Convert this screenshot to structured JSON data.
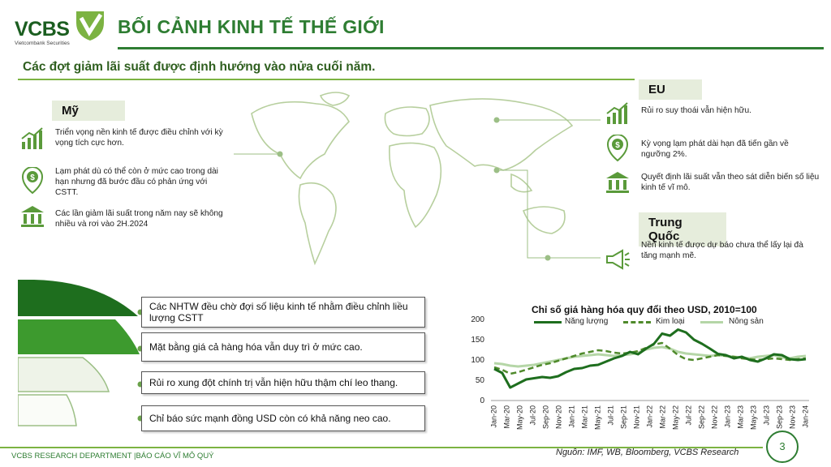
{
  "logo": {
    "text": "VCBS",
    "tagline": "Vietcombank Securities"
  },
  "title": "BỐI CẢNH KINH TẾ THẾ GIỚI",
  "subtitle": "Các đợt giảm lãi suất được định hướng vào nửa cuối năm.",
  "us": {
    "label": "Mỹ",
    "items": [
      {
        "icon": "growth-chart-icon",
        "text": "Triển vọng nền kinh tế được điều chỉnh với kỳ vọng tích cực hơn."
      },
      {
        "icon": "dollar-shield-icon",
        "text": "Lạm phát dù có thể còn ở mức cao trong dài hạn nhưng đã bước đầu có phản ứng với CSTT."
      },
      {
        "icon": "bank-icon",
        "text": "Các lần giảm lãi suất trong năm nay sẽ không nhiều và rơi vào 2H.2024"
      }
    ]
  },
  "eu": {
    "label": "EU",
    "items": [
      {
        "icon": "growth-chart-icon",
        "text": "Rủi ro suy thoái vẫn hiện hữu."
      },
      {
        "icon": "dollar-shield-icon",
        "text": "Kỳ vọng lạm phát dài hạn đã tiến gần về ngưỡng 2%."
      },
      {
        "icon": "bank-icon",
        "text": "Quyết định lãi suất vẫn theo sát diễn biến số liệu kinh tế vĩ mô."
      }
    ]
  },
  "china": {
    "label": "Trung Quốc",
    "items": [
      {
        "icon": "megaphone-icon",
        "text": "Nền kinh tế được dự báo chưa thể lấy lại đà tăng mạnh mẽ."
      }
    ]
  },
  "funnel": [
    "Các NHTW đều chờ đợi số liệu kinh tế nhằm điều chỉnh liều lượng CSTT",
    "Mặt bằng giá cả hàng hóa vẫn duy trì ở mức cao.",
    "Rủi ro xung đột chính trị vẫn hiện hữu thậm chí leo thang.",
    "Chỉ báo sức mạnh đồng USD còn có khả năng neo cao."
  ],
  "colors": {
    "brand": "#2e7d32",
    "energy": "#1e6e1e",
    "metal": "#4f8a2b",
    "agri": "#b5d6a7"
  },
  "chart_data": {
    "type": "line",
    "title": "Chỉ số giá hàng hóa quy đổi theo USD, 2010=100",
    "ylim": [
      0,
      200
    ],
    "yticks": [
      0,
      50,
      100,
      150,
      200
    ],
    "tick_labels": [
      "Jan-20",
      "Mar-20",
      "May-20",
      "Jul-20",
      "Sep-20",
      "Nov-20",
      "Jan-21",
      "Mar-21",
      "May-21",
      "Jul-21",
      "Sep-21",
      "Nov-21",
      "Jan-22",
      "Mar-22",
      "May-22",
      "Jul-22",
      "Sep-22",
      "Nov-22",
      "Jan-23",
      "Mar-23",
      "May-23",
      "Jul-23",
      "Sep-23",
      "Nov-23",
      "Jan-24"
    ],
    "series": [
      {
        "name": "Năng lượng",
        "style": "solid",
        "values": [
          78,
          68,
          32,
          42,
          52,
          55,
          58,
          56,
          60,
          70,
          78,
          80,
          86,
          88,
          96,
          104,
          110,
          120,
          114,
          128,
          140,
          165,
          160,
          175,
          168,
          150,
          140,
          128,
          115,
          112,
          104,
          108,
          100,
          96,
          104,
          114,
          112,
          102,
          100,
          102
        ]
      },
      {
        "name": "Kim loại",
        "style": "dashed",
        "values": [
          82,
          76,
          66,
          70,
          76,
          82,
          88,
          92,
          98,
          104,
          110,
          116,
          120,
          124,
          122,
          118,
          116,
          118,
          122,
          130,
          138,
          142,
          128,
          112,
          102,
          100,
          104,
          108,
          112,
          110,
          108,
          104,
          102,
          100,
          102,
          104,
          102,
          100,
          102,
          104
        ]
      },
      {
        "name": "Nông sản",
        "style": "solid-light",
        "values": [
          92,
          90,
          86,
          84,
          86,
          88,
          92,
          96,
          100,
          104,
          108,
          110,
          112,
          114,
          112,
          110,
          112,
          114,
          118,
          126,
          130,
          132,
          128,
          120,
          116,
          114,
          112,
          110,
          112,
          110,
          108,
          106,
          104,
          108,
          110,
          112,
          106,
          104,
          108,
          110
        ]
      }
    ]
  },
  "source": "Nguồn: IMF, WB, Bloomberg, VCBS Research",
  "footer": "VCBS RESEARCH DEPARTMENT |BÁO CÁO VĨ MÔ QUÝ",
  "page": "3"
}
